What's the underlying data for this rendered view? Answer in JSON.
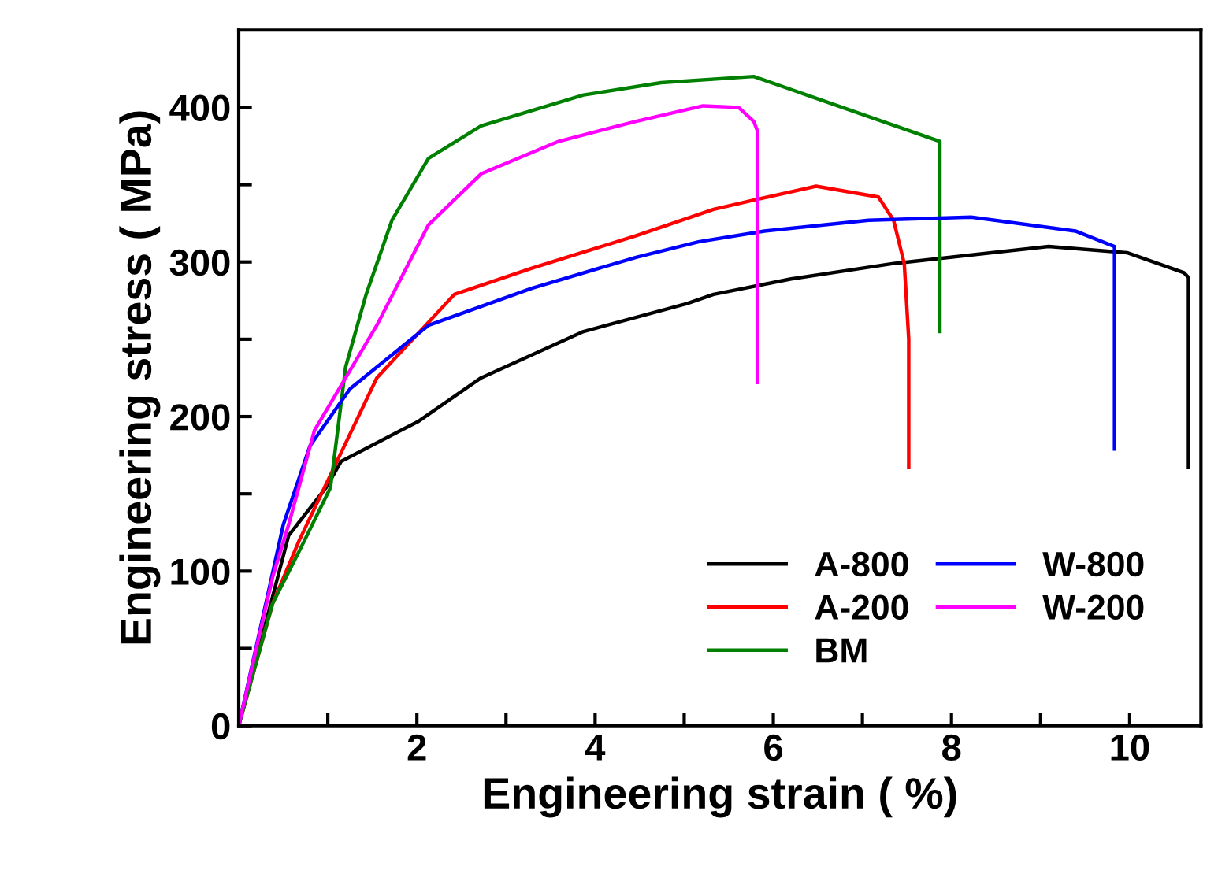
{
  "chart_data": {
    "type": "line",
    "xlabel": "Engineering strain ( %)",
    "ylabel": "Engineering stress ( MPa)",
    "xlim": [
      0,
      10.8
    ],
    "ylim": [
      0,
      450
    ],
    "xticks": [
      {
        "value": 1,
        "label": null
      },
      2,
      {
        "value": 3,
        "label": null
      },
      4,
      {
        "value": 5,
        "label": null
      },
      6,
      {
        "value": 7,
        "label": null
      },
      8,
      {
        "value": 9,
        "label": null
      },
      10
    ],
    "yticks": [
      0,
      {
        "value": 50,
        "label": null
      },
      100,
      {
        "value": 150,
        "label": null
      },
      200,
      {
        "value": 250,
        "label": null
      },
      300,
      {
        "value": 350,
        "label": null
      },
      400
    ],
    "grid": false,
    "legend": "lower right",
    "marker": "none",
    "line_style": "solid",
    "series": [
      {
        "name": "A-800",
        "color": "#000000",
        "x": [
          0,
          0.56,
          0.98,
          1.15,
          2.02,
          2.72,
          3.87,
          5.03,
          5.33,
          6.2,
          7.35,
          9.09,
          9.97,
          10.61,
          10.66,
          10.66
        ],
        "values": [
          0,
          123,
          154,
          171,
          197,
          225,
          255,
          273,
          279,
          289,
          299,
          310,
          306,
          293,
          290,
          167
        ]
      },
      {
        "name": "A-200",
        "color": "#ff0000",
        "x": [
          0,
          0.38,
          0.68,
          1.55,
          2.42,
          3.29,
          4.46,
          5.33,
          5.78,
          6.48,
          7.18,
          7.35,
          7.47,
          7.52,
          7.52
        ],
        "values": [
          0,
          79,
          120,
          225,
          279,
          296,
          317,
          334,
          340,
          349,
          342,
          327,
          299,
          250,
          167
        ]
      },
      {
        "name": "BM",
        "color": "#008000",
        "x": [
          0,
          0.38,
          0.68,
          1.03,
          1.2,
          1.43,
          1.72,
          2.13,
          2.72,
          3.87,
          4.74,
          5.78,
          7.87,
          7.87
        ],
        "values": [
          0,
          79,
          113,
          154,
          232,
          279,
          327,
          367,
          388,
          408,
          416,
          420,
          378,
          255
        ]
      },
      {
        "name": "W-800",
        "color": "#0000ff",
        "x": [
          0,
          0.5,
          0.8,
          1.25,
          2.13,
          3.29,
          4.46,
          5.16,
          5.9,
          7.07,
          8.22,
          9.39,
          9.83,
          9.83
        ],
        "values": [
          0,
          130,
          181,
          218,
          259,
          283,
          303,
          313,
          320,
          327,
          329,
          320,
          310,
          179
        ]
      },
      {
        "name": "W-200",
        "color": "#ff00ff",
        "x": [
          0,
          0.38,
          0.56,
          0.85,
          1.55,
          2.13,
          2.72,
          3.59,
          4.46,
          5.21,
          5.61,
          5.78,
          5.82,
          5.82
        ],
        "values": [
          0,
          96,
          130,
          191,
          259,
          324,
          357,
          378,
          391,
          401,
          400,
          391,
          385,
          222
        ]
      }
    ]
  }
}
